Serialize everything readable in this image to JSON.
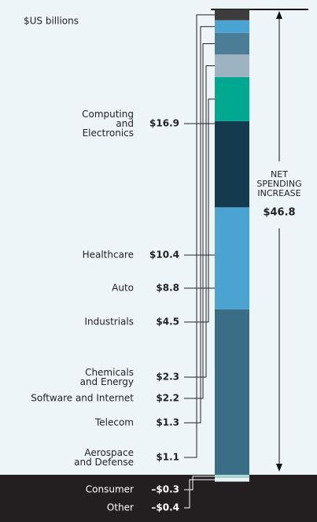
{
  "chart_data": {
    "type": "stacked-column",
    "unit_label": "$US billions",
    "categories": [
      "Computing\nand\nElectronics",
      "Healthcare",
      "Auto",
      "Industrials",
      "Chemicals\nand Energy",
      "Software and Internet",
      "Telecom",
      "Aerospace\nand Defense",
      "Consumer",
      "Other"
    ],
    "values": [
      16.9,
      10.4,
      8.8,
      4.5,
      2.3,
      2.2,
      1.3,
      1.1,
      -0.3,
      -0.4
    ],
    "value_labels": [
      "$16.9",
      "$10.4",
      "$8.8",
      "$4.5",
      "$2.3",
      "$2.2",
      "$1.3",
      "$1.1",
      "–$0.3",
      "–$0.4"
    ],
    "colors": [
      "#3a6e86",
      "#4aa3d1",
      "#133a4f",
      "#00a88f",
      "#9db3c2",
      "#4b7d96",
      "#4aa3d1",
      "#3c3c3c",
      "#a8d8d0",
      "#e8f2f5"
    ],
    "total": {
      "text": "NET\nSPENDING\nINCREASE",
      "value": 46.8,
      "value_label": "$46.8"
    }
  }
}
